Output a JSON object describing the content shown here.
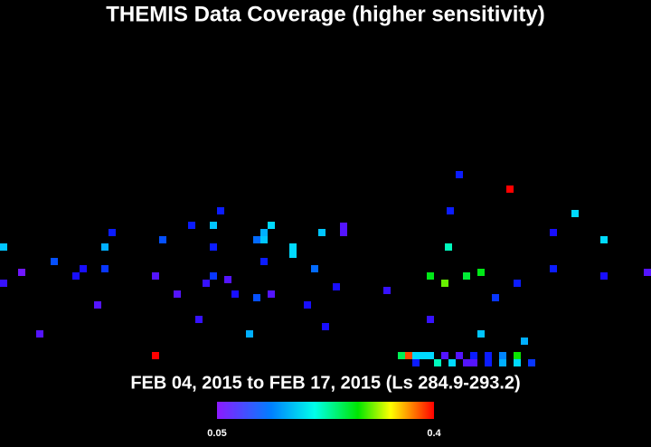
{
  "chart_data": {
    "type": "scatter",
    "title": "THEMIS Data Coverage (higher sensitivity)",
    "subtitle": "FEB 04, 2015 to FEB 17, 2015 (Ls 284.9-293.2)",
    "xlim": [
      0,
      360
    ],
    "ylim": [
      90,
      -90
    ],
    "colorbar": {
      "lim": [
        0.05,
        0.4
      ],
      "ticks": [
        0.05,
        0.4
      ]
    },
    "x": [
      254,
      282,
      122,
      318,
      106,
      118,
      150,
      190,
      249,
      62,
      178,
      190,
      146,
      306,
      90,
      118,
      142,
      146,
      162,
      162,
      2,
      58,
      248,
      334,
      30,
      146,
      12,
      46,
      42,
      58,
      86,
      118,
      126,
      174,
      238,
      258,
      266,
      306,
      334,
      358,
      2,
      246,
      286,
      114,
      98,
      130,
      142,
      150,
      186,
      214,
      274,
      54,
      170,
      110,
      238,
      180,
      22,
      138,
      266,
      290,
      86,
      222,
      226,
      230,
      234,
      238,
      246,
      254,
      262,
      270,
      278,
      286,
      230,
      242,
      250,
      258,
      262,
      270,
      278,
      286,
      294
    ],
    "y": [
      15.5,
      7.5,
      -4.5,
      -6,
      -12.5,
      -12.5,
      -12.5,
      -13,
      -4.5,
      -16.5,
      -16.5,
      -16.5,
      -16.5,
      -16.5,
      -20.5,
      -24.5,
      -20.5,
      -20.5,
      -24.5,
      -28.5,
      -24.5,
      -24.5,
      -24.5,
      -20.5,
      -32.5,
      -32.5,
      -38.5,
      -36.5,
      -40.5,
      -36.5,
      -40.5,
      -40.5,
      -42.5,
      -36.5,
      -40.5,
      -40.5,
      -38.5,
      -36.5,
      -40.5,
      -38.5,
      -44.5,
      -44.5,
      -44.5,
      -44.5,
      -50.5,
      -50.5,
      -52.5,
      -50.5,
      -46.5,
      -48.5,
      -52.5,
      -56.5,
      -56.5,
      -64.5,
      -64.5,
      -68.5,
      -72.5,
      -72.5,
      -72.5,
      -76.5,
      -84.5,
      -84.5,
      -84.5,
      -84.5,
      -84.5,
      -84.5,
      -84.5,
      -84.5,
      -84.5,
      -84.5,
      -84.5,
      -84.5,
      -88.5,
      -88.5,
      -88.5,
      -88.5,
      -88.5,
      -88.5,
      -88.5,
      -88.5,
      -88.5
    ],
    "values": [
      0.1,
      0.4,
      0.1,
      0.18,
      0.1,
      0.17,
      0.18,
      0.07,
      0.1,
      0.1,
      0.17,
      0.07,
      0.16,
      0.09,
      0.12,
      0.1,
      0.13,
      0.17,
      0.18,
      0.18,
      0.17,
      0.16,
      0.22,
      0.18,
      0.12,
      0.1,
      0.06,
      0.09,
      0.09,
      0.11,
      0.07,
      0.11,
      0.07,
      0.13,
      0.27,
      0.26,
      0.27,
      0.1,
      0.09,
      0.07,
      0.08,
      0.3,
      0.1,
      0.08,
      0.07,
      0.09,
      0.12,
      0.07,
      0.09,
      0.08,
      0.11,
      0.07,
      0.09,
      0.08,
      0.08,
      0.09,
      0.07,
      0.16,
      0.17,
      0.16,
      0.4,
      0.25,
      0.38,
      0.18,
      0.18,
      0.18,
      0.07,
      0.07,
      0.1,
      0.1,
      0.14,
      0.28,
      0.1,
      0.22,
      0.18,
      0.07,
      0.07,
      0.1,
      0.16,
      0.18,
      0.11
    ]
  }
}
